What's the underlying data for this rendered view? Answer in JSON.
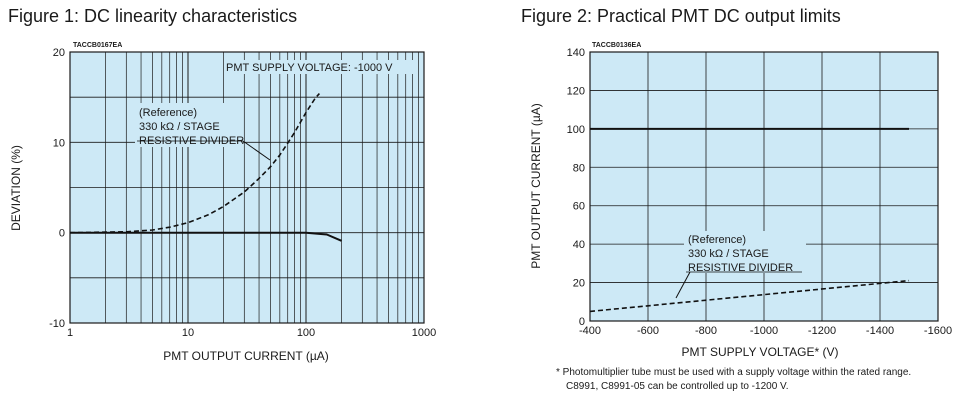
{
  "figures": [
    {
      "title": "Figure 1: DC linearity characteristics",
      "code": "TACCB0167EA",
      "chart_data": {
        "type": "line",
        "xlabel": "PMT OUTPUT CURRENT (µA)",
        "ylabel": "DEVIATION (%)",
        "x_scale": "log",
        "xlim": [
          1,
          1000
        ],
        "ylim": [
          -10,
          20
        ],
        "x_ticks": [
          "1",
          "10",
          "100",
          "1000"
        ],
        "y_ticks": [
          "-10",
          "0",
          "10",
          "20"
        ],
        "grid": true,
        "annotations": [
          "PMT SUPPLY VOLTAGE: -1000 V",
          "(Reference)",
          "330 kΩ / STAGE",
          "RESISTIVE DIVIDER"
        ],
        "series": [
          {
            "style": "solid",
            "x": [
              1,
              3,
              10,
              30,
              100,
              150,
              200
            ],
            "y": [
              0,
              0,
              0,
              0,
              0,
              -0.2,
              -0.9
            ]
          },
          {
            "name": "(Reference) 330 kΩ / STAGE RESISTIVE DIVIDER",
            "style": "dashed",
            "x": [
              1,
              3,
              5,
              7,
              10,
              15,
              20,
              30,
              40,
              50,
              60,
              70,
              80,
              100,
              120,
              130
            ],
            "y": [
              0,
              0.1,
              0.3,
              0.6,
              1.1,
              2.0,
              2.9,
              4.5,
              6.0,
              7.3,
              8.6,
              9.9,
              11.1,
              13.3,
              14.9,
              15.4
            ]
          }
        ]
      }
    },
    {
      "title": "Figure 2: Practical PMT DC output limits",
      "code": "TACCB0136EA",
      "chart_data": {
        "type": "line",
        "xlabel": "PMT SUPPLY VOLTAGE* (V)",
        "ylabel": "PMT OUTPUT CURRENT (µA)",
        "xlim": [
          -400,
          -1600
        ],
        "ylim": [
          0,
          140
        ],
        "x_ticks": [
          "-400",
          "-600",
          "-800",
          "-1000",
          "-1200",
          "-1400",
          "-1600"
        ],
        "y_ticks": [
          "0",
          "20",
          "40",
          "60",
          "80",
          "100",
          "120",
          "140"
        ],
        "grid": true,
        "annotations": [
          "(Reference)",
          "330 kΩ / STAGE",
          "RESISTIVE DIVIDER"
        ],
        "series": [
          {
            "style": "solid",
            "x": [
              -400,
              -1500
            ],
            "y": [
              100,
              100
            ]
          },
          {
            "name": "(Reference) 330 kΩ / STAGE RESISTIVE DIVIDER",
            "style": "dashed",
            "x": [
              -400,
              -1500
            ],
            "y": [
              5,
              21
            ]
          }
        ]
      }
    }
  ],
  "footnote": [
    "* Photomultiplier tube must be used with a supply voltage within the rated range.",
    "C8991, C8991-05 can be controlled up to -1200 V."
  ],
  "colors": {
    "plot_background": "#cde9f6",
    "grid": "#1a1a1a",
    "line": "#111111"
  }
}
